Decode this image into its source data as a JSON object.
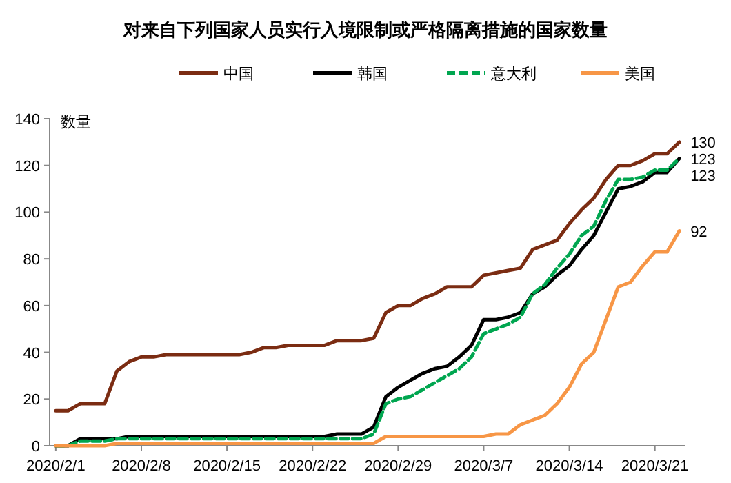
{
  "chart_data": {
    "type": "line",
    "title": "对来自下列国家人员实行入境限制或严格隔离措施的国家数量",
    "ylabel": "数量",
    "x": [
      "2020-02-01",
      "2020-02-02",
      "2020-02-03",
      "2020-02-04",
      "2020-02-05",
      "2020-02-06",
      "2020-02-07",
      "2020-02-08",
      "2020-02-09",
      "2020-02-10",
      "2020-02-11",
      "2020-02-12",
      "2020-02-13",
      "2020-02-14",
      "2020-02-15",
      "2020-02-16",
      "2020-02-17",
      "2020-02-18",
      "2020-02-19",
      "2020-02-20",
      "2020-02-21",
      "2020-02-22",
      "2020-02-23",
      "2020-02-24",
      "2020-02-25",
      "2020-02-26",
      "2020-02-27",
      "2020-02-28",
      "2020-02-29",
      "2020-03-01",
      "2020-03-02",
      "2020-03-03",
      "2020-03-04",
      "2020-03-05",
      "2020-03-06",
      "2020-03-07",
      "2020-03-08",
      "2020-03-09",
      "2020-03-10",
      "2020-03-11",
      "2020-03-12",
      "2020-03-13",
      "2020-03-14",
      "2020-03-15",
      "2020-03-16",
      "2020-03-17",
      "2020-03-18",
      "2020-03-19",
      "2020-03-20",
      "2020-03-21",
      "2020-03-22",
      "2020-03-23"
    ],
    "series": [
      {
        "name": "中国",
        "color": "#7b2c12",
        "values": [
          15,
          15,
          18,
          18,
          18,
          32,
          36,
          38,
          38,
          39,
          39,
          39,
          39,
          39,
          39,
          39,
          40,
          42,
          42,
          43,
          43,
          43,
          43,
          45,
          45,
          45,
          46,
          57,
          60,
          60,
          63,
          65,
          68,
          68,
          68,
          73,
          74,
          75,
          76,
          84,
          86,
          88,
          95,
          101,
          106,
          114,
          120,
          120,
          122,
          125,
          125,
          130
        ]
      },
      {
        "name": "韩国",
        "color": "#000000",
        "values": [
          0,
          0,
          3,
          3,
          3,
          3,
          4,
          4,
          4,
          4,
          4,
          4,
          4,
          4,
          4,
          4,
          4,
          4,
          4,
          4,
          4,
          4,
          4,
          5,
          5,
          5,
          8,
          21,
          25,
          28,
          31,
          33,
          34,
          38,
          43,
          54,
          54,
          55,
          57,
          65,
          68,
          73,
          77,
          84,
          90,
          100,
          110,
          111,
          113,
          117,
          117,
          123
        ]
      },
      {
        "name": "意大利",
        "color": "#00a650",
        "line_style": "dashed",
        "values": [
          0,
          0,
          2,
          2,
          2,
          3,
          3,
          3,
          3,
          3,
          3,
          3,
          3,
          3,
          3,
          3,
          3,
          3,
          3,
          3,
          3,
          3,
          3,
          3,
          3,
          3,
          5,
          18,
          20,
          21,
          24,
          27,
          30,
          33,
          38,
          48,
          50,
          52,
          55,
          65,
          69,
          76,
          82,
          90,
          94,
          105,
          114,
          114,
          115,
          118,
          118,
          123
        ]
      },
      {
        "name": "美国",
        "color": "#f79646",
        "values": [
          0,
          0,
          0,
          0,
          0,
          1,
          1,
          1,
          1,
          1,
          1,
          1,
          1,
          1,
          1,
          1,
          1,
          1,
          1,
          1,
          1,
          1,
          1,
          1,
          1,
          1,
          1,
          4,
          4,
          4,
          4,
          4,
          4,
          4,
          4,
          4,
          5,
          5,
          9,
          11,
          13,
          18,
          25,
          35,
          40,
          54,
          68,
          70,
          77,
          83,
          83,
          92
        ]
      }
    ],
    "annotations": [
      {
        "text": "130",
        "x": "2020-03-23",
        "y": 130
      },
      {
        "text": "123",
        "x": "2020-03-23",
        "y": 123
      },
      {
        "text": "123",
        "x": "2020-03-23",
        "y": 123
      },
      {
        "text": "92",
        "x": "2020-03-23",
        "y": 92
      }
    ],
    "xlim": [
      "2020-01-31T12:00",
      "2020-03-23T12:00"
    ],
    "xticks": [
      {
        "value": "2020-02-01",
        "label": "2020/2/1"
      },
      {
        "value": "2020-02-08",
        "label": "2020/2/8"
      },
      {
        "value": "2020-02-15",
        "label": "2020/2/15"
      },
      {
        "value": "2020-02-22",
        "label": "2020/2/22"
      },
      {
        "value": "2020-02-29",
        "label": "2020/2/29"
      },
      {
        "value": "2020-03-07",
        "label": "2020/3/7"
      },
      {
        "value": "2020-03-14",
        "label": "2020/3/14"
      },
      {
        "value": "2020-03-21",
        "label": "2020/3/21"
      }
    ],
    "ylim": [
      0,
      140
    ],
    "yticks": [
      0,
      20,
      40,
      60,
      80,
      100,
      120,
      140
    ],
    "legend": "top",
    "grid": false,
    "marker": "none"
  }
}
